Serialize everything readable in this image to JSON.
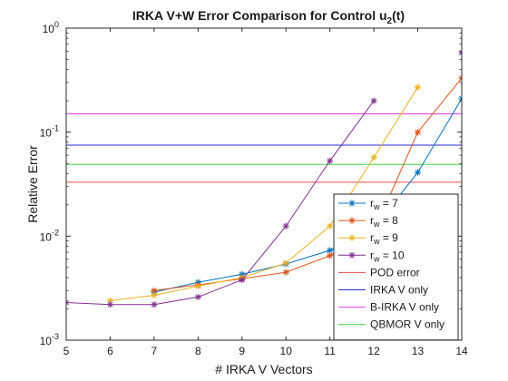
{
  "chart_data": {
    "type": "line",
    "title_main": "IRKA V+W Error Comparison for Control u",
    "title_sub": "2",
    "title_tail": "(t)",
    "xlabel": "# IRKA V Vectors",
    "ylabel": "Relative Error",
    "y_scale": "log",
    "xlim": [
      5,
      14
    ],
    "ylim": [
      0.001,
      1
    ],
    "x_ticks": [
      5,
      6,
      7,
      8,
      9,
      10,
      11,
      12,
      13,
      14
    ],
    "x_tick_labels": [
      "5",
      "6",
      "7",
      "8",
      "9",
      "10",
      "11",
      "12",
      "13",
      "14"
    ],
    "y_ticks": [
      {
        "value": 0.001,
        "base": "10",
        "exp": "-3"
      },
      {
        "value": 0.01,
        "base": "10",
        "exp": "-2"
      },
      {
        "value": 0.1,
        "base": "10",
        "exp": "-1"
      },
      {
        "value": 1,
        "base": "10",
        "exp": "0"
      }
    ],
    "grid": false,
    "legend_position": "bottom-right",
    "series": [
      {
        "name_main": "r",
        "name_sub": "w",
        "name_tail": " = 7",
        "color": "#0072BD",
        "marker": "asterisk",
        "x": [
          7,
          8,
          9,
          10,
          11,
          12,
          13,
          14
        ],
        "y": [
          0.0029,
          0.0036,
          0.0043,
          0.0054,
          0.0073,
          0.012,
          0.041,
          0.21
        ]
      },
      {
        "name_main": "r",
        "name_sub": "w",
        "name_tail": " = 8",
        "color": "#D95319",
        "marker": "asterisk",
        "x": [
          7,
          8,
          9,
          10,
          11,
          12,
          13,
          14
        ],
        "y": [
          0.003,
          0.0034,
          0.0039,
          0.0045,
          0.0065,
          0.011,
          0.1,
          0.33
        ]
      },
      {
        "name_main": "r",
        "name_sub": "w",
        "name_tail": " = 9",
        "color": "#EDB120",
        "marker": "asterisk",
        "x": [
          6,
          7,
          8,
          9,
          10,
          11,
          12,
          13
        ],
        "y": [
          0.0024,
          0.0027,
          0.0033,
          0.004,
          0.0055,
          0.0125,
          0.057,
          0.27
        ]
      },
      {
        "name_main": "r",
        "name_sub": "w",
        "name_tail": " = 10",
        "color": "#7E2F8E",
        "marker": "asterisk",
        "x": [
          5,
          6,
          7,
          8,
          9,
          10,
          11,
          12
        ],
        "y": [
          0.0023,
          0.0022,
          0.0022,
          0.0026,
          0.0038,
          0.0125,
          0.053,
          0.2
        ]
      },
      {
        "name_main": "r",
        "name_sub": "w",
        "name_tail": " = 10",
        "color": "#7E2F8E",
        "marker": "asterisk",
        "x": [
          14
        ],
        "y": [
          0.58
        ],
        "legend": false
      }
    ],
    "reference_lines": [
      {
        "name": "POD error",
        "color": "#E34A4A",
        "y": 0.033
      },
      {
        "name": "IRKA V only",
        "color": "#2A2ADF",
        "y": 0.075
      },
      {
        "name": "B-IRKA V only",
        "color": "#E23FE2",
        "y": 0.15
      },
      {
        "name": "QBMOR V only",
        "color": "#33D633",
        "y": 0.049
      }
    ]
  }
}
